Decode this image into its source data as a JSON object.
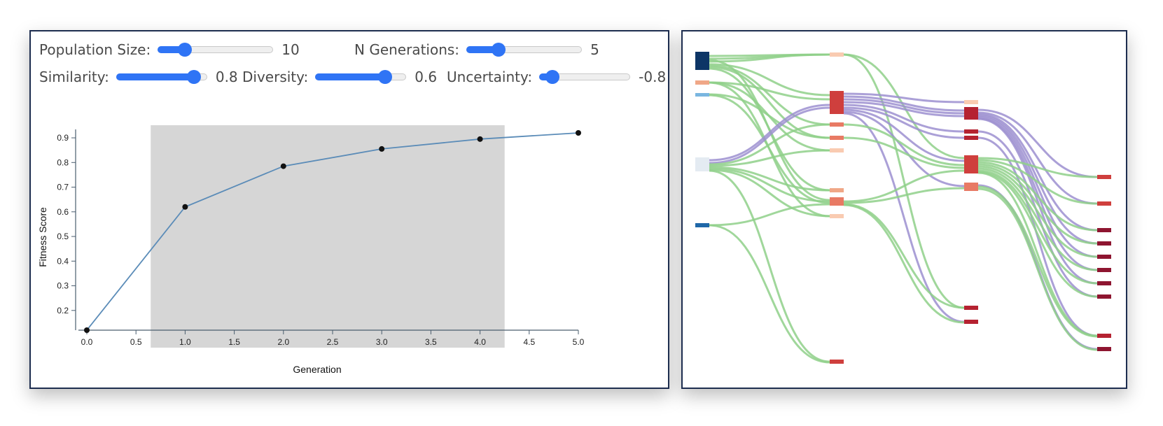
{
  "controls": [
    {
      "label": "Population Size:",
      "value": "10",
      "min": 0,
      "max": 50,
      "num": 10
    },
    {
      "label": "N Generations:",
      "value": "5",
      "min": 0,
      "max": 20,
      "num": 5
    },
    {
      "label": "Similarity:",
      "value": "0.8",
      "min": -1,
      "max": 1,
      "num": 0.8
    },
    {
      "label": "Diversity:",
      "value": "0.6",
      "min": -1,
      "max": 1,
      "num": 0.6
    },
    {
      "label": "Uncertainty:",
      "value": "-0.8",
      "min": -1,
      "max": 1,
      "num": -0.8
    }
  ],
  "colors": {
    "line": "#5b8cb8",
    "point": "#111111",
    "brush": "#d6d6d6",
    "slider": "#2f74f5",
    "green_link": "#8fd08a",
    "purple_link": "#9c8fd0"
  },
  "chart_data": {
    "type": "line",
    "xlabel": "Generation",
    "ylabel": "Fitness Score",
    "xlim": [
      0,
      5
    ],
    "ylim": [
      0.12,
      0.92
    ],
    "xticks": [
      "0.0",
      "0.5",
      "1.0",
      "1.5",
      "2.0",
      "2.5",
      "3.0",
      "3.5",
      "4.0",
      "4.5",
      "5.0"
    ],
    "yticks": [
      "0.2",
      "0.3",
      "0.4",
      "0.5",
      "0.6",
      "0.7",
      "0.8",
      "0.9"
    ],
    "x": [
      0,
      1,
      2,
      3,
      4,
      5
    ],
    "y": [
      0.12,
      0.62,
      0.785,
      0.855,
      0.895,
      0.92
    ],
    "brush_range": [
      0.65,
      4.25
    ]
  }
}
